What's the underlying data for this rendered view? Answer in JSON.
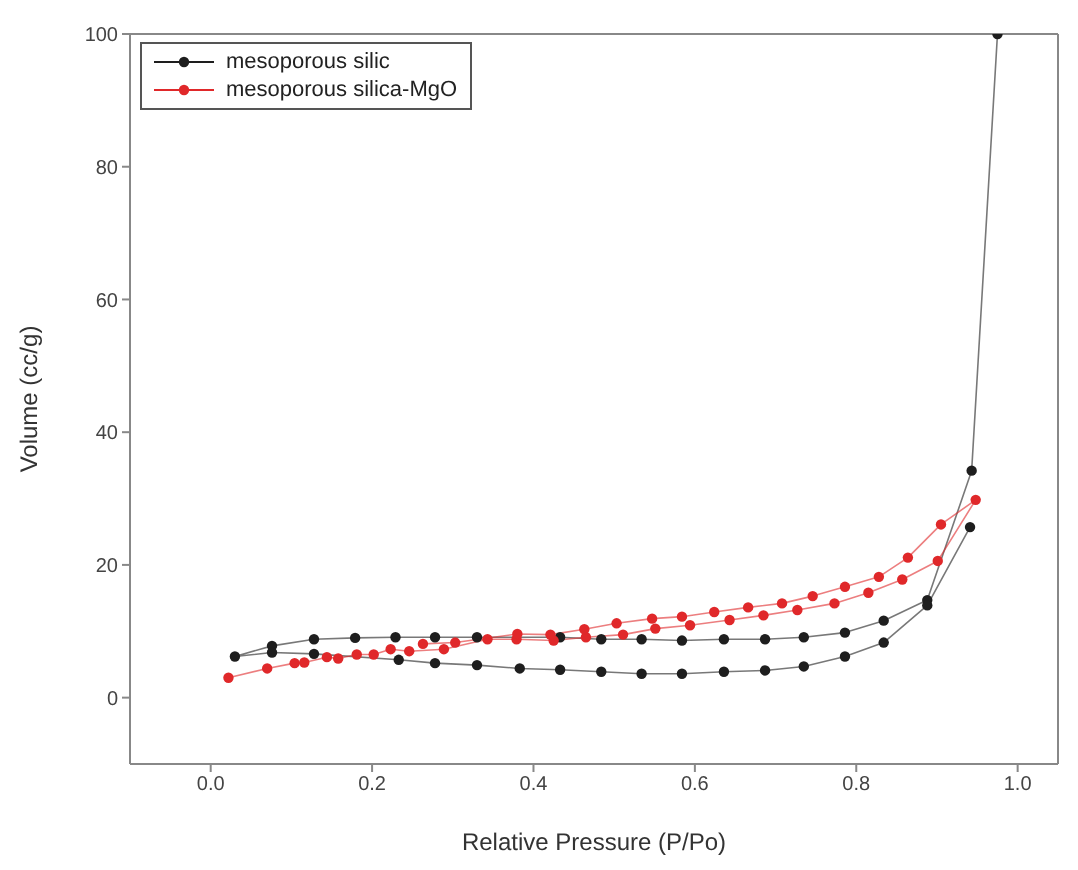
{
  "chart_data": {
    "type": "line",
    "xlabel": "Relative Pressure (P/Po)",
    "ylabel": "Volume (cc/g)",
    "xlim": [
      -0.1,
      1.05
    ],
    "xticks": [
      {
        "value": 0,
        "label": "0.0"
      },
      {
        "value": 0.2,
        "label": "0.2"
      },
      {
        "value": 0.4,
        "label": "0.4"
      },
      {
        "value": 0.6,
        "label": "0.6"
      },
      {
        "value": 0.8,
        "label": "0.8"
      },
      {
        "value": 1,
        "label": "1.0"
      }
    ],
    "ylim": [
      -10,
      100
    ],
    "yticks": [
      0,
      20,
      40,
      60,
      80,
      100
    ],
    "legend": "top left",
    "marker": "circle",
    "line_style": "solid",
    "series": [
      {
        "name": "mesoporous silic",
        "color": "#1e1e1e",
        "x": [
          0.975,
          0.943,
          0.888,
          0.834,
          0.786,
          0.735,
          0.687,
          0.636,
          0.584,
          0.534,
          0.484,
          0.433,
          0.33,
          0.278,
          0.229,
          0.179,
          0.128,
          0.076,
          0.03,
          0.076,
          0.128,
          0.233,
          0.278,
          0.33,
          0.383,
          0.433,
          0.484,
          0.534,
          0.584,
          0.636,
          0.687,
          0.735,
          0.786,
          0.834,
          0.888,
          0.941
        ],
        "values": [
          100,
          34.2,
          14.7,
          11.6,
          9.8,
          9.1,
          8.8,
          8.8,
          8.6,
          8.8,
          8.8,
          9.1,
          9.1,
          9.1,
          9.1,
          9.0,
          8.8,
          7.8,
          6.2,
          6.8,
          6.6,
          5.7,
          5.2,
          4.9,
          4.4,
          4.2,
          3.9,
          3.6,
          3.6,
          3.9,
          4.1,
          4.7,
          6.2,
          8.3,
          13.9,
          25.7
        ]
      },
      {
        "name": "mesoporous silica-MgO",
        "color": "#e0282a",
        "x": [
          0.022,
          0.07,
          0.104,
          0.116,
          0.144,
          0.158,
          0.181,
          0.202,
          0.223,
          0.246,
          0.289,
          0.343,
          0.379,
          0.425,
          0.465,
          0.511,
          0.551,
          0.594,
          0.643,
          0.685,
          0.727,
          0.773,
          0.815,
          0.857,
          0.901,
          0.948,
          0.905,
          0.864,
          0.828,
          0.786,
          0.746,
          0.708,
          0.666,
          0.624,
          0.584,
          0.547,
          0.503,
          0.463,
          0.421,
          0.38,
          0.303,
          0.263
        ],
        "values": [
          3.0,
          4.4,
          5.2,
          5.3,
          6.1,
          5.9,
          6.5,
          6.5,
          7.3,
          7.0,
          7.3,
          8.8,
          8.8,
          8.6,
          9.1,
          9.5,
          10.4,
          10.9,
          11.7,
          12.4,
          13.2,
          14.2,
          15.8,
          17.8,
          20.6,
          29.8,
          26.1,
          21.1,
          18.2,
          16.7,
          15.3,
          14.2,
          13.6,
          12.9,
          12.2,
          11.9,
          11.2,
          10.3,
          9.5,
          9.6,
          8.3,
          8.1
        ]
      }
    ]
  }
}
